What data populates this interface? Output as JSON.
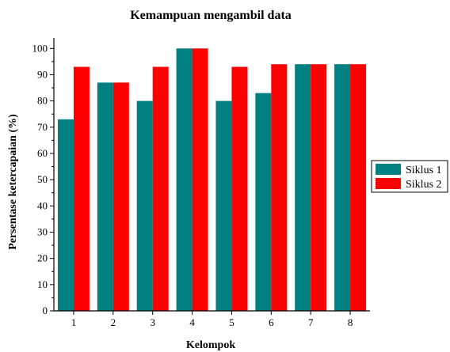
{
  "chart_data": {
    "type": "bar",
    "title": "Kemampuan mengambil data",
    "xlabel": "Kelompok",
    "ylabel": "Persentase ketercapaian (%)",
    "categories": [
      "1",
      "2",
      "3",
      "4",
      "5",
      "6",
      "7",
      "8"
    ],
    "series": [
      {
        "name": "Siklus 1",
        "color": "#008080",
        "values": [
          73,
          87,
          80,
          100,
          80,
          83,
          94,
          94
        ]
      },
      {
        "name": "Siklus 2",
        "color": "#ff0000",
        "values": [
          93,
          87,
          93,
          100,
          93,
          94,
          94,
          94
        ]
      }
    ],
    "ylim": [
      0,
      104
    ],
    "yticks": [
      0,
      10,
      20,
      30,
      40,
      50,
      60,
      70,
      80,
      90,
      100
    ],
    "grid": false,
    "legend_position": "right"
  }
}
